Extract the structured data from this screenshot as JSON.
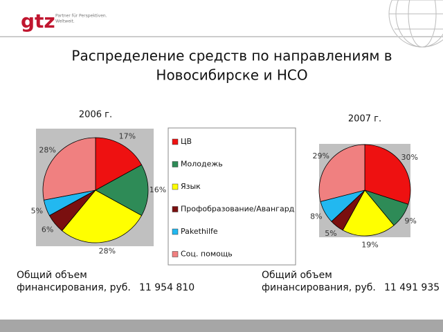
{
  "logo": {
    "brand": "gtz",
    "tagline_1": "Partner für Perspektiven.",
    "tagline_2": "Weltweit."
  },
  "title_1": "Распределение средств по направлениям в",
  "title_2": "Новосибирске и НСО",
  "legend": {
    "names": [
      "ЦВ",
      "Молодежь",
      "Язык",
      "Профобразование/Авангард",
      "Pakethilfe",
      "Соц. помощь"
    ],
    "colors": [
      "#ee1111",
      "#2e8b57",
      "#ffff00",
      "#7a0f0f",
      "#22b8f0",
      "#f08080"
    ]
  },
  "chart_data": [
    {
      "type": "pie",
      "title": "2006 г.",
      "values": [
        17,
        16,
        28,
        6,
        5,
        28
      ],
      "value_labels": [
        "17%",
        "16%",
        "28%",
        "6%",
        "5%",
        "28%"
      ]
    },
    {
      "type": "pie",
      "title": "2007 г.",
      "values": [
        30,
        9,
        19,
        5,
        8,
        29
      ],
      "value_labels": [
        "30%",
        "9%",
        "19%",
        "5%",
        "8%",
        "29%"
      ]
    }
  ],
  "totals": [
    {
      "line_1": "Общий объем",
      "line_2": "финансирования, руб.",
      "amount": "11 954 810"
    },
    {
      "line_1": "Общий объем",
      "line_2": "финансирования, руб.",
      "amount": "11 491 935"
    }
  ]
}
